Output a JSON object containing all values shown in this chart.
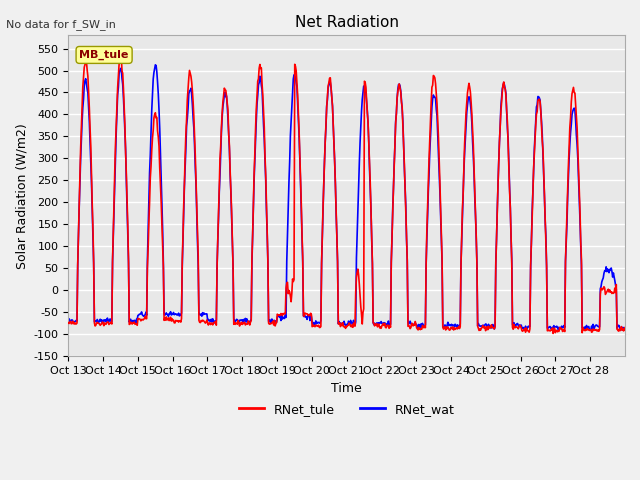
{
  "title": "Net Radiation",
  "subtitle": "No data for f_SW_in",
  "xlabel": "Time",
  "ylabel": "Solar Radiation (W/m2)",
  "ylim": [
    -150,
    580
  ],
  "yticks": [
    -150,
    -100,
    -50,
    0,
    50,
    100,
    150,
    200,
    250,
    300,
    350,
    400,
    450,
    500,
    550
  ],
  "xtick_labels": [
    "Oct 13",
    "Oct 14",
    "Oct 15",
    "Oct 16",
    "Oct 17",
    "Oct 18",
    "Oct 19",
    "Oct 20",
    "Oct 21",
    "Oct 22",
    "Oct 23",
    "Oct 24",
    "Oct 25",
    "Oct 26",
    "Oct 27",
    "Oct 28"
  ],
  "color_tule": "#FF0000",
  "color_wat": "#0000FF",
  "legend_label_tule": "RNet_tule",
  "legend_label_wat": "RNet_wat",
  "legend_box_label": "MB_tule",
  "legend_box_color": "#FFFF99",
  "legend_box_edge": "#999900",
  "bg_color": "#E8E8E8",
  "grid_color": "#FFFFFF",
  "line_width": 1.2,
  "days": 16,
  "points_per_day": 48,
  "day_peaks_tule": [
    525,
    530,
    400,
    495,
    460,
    515,
    510,
    480,
    475,
    470,
    490,
    465,
    470,
    435,
    460,
    0
  ],
  "day_peaks_wat": [
    480,
    505,
    510,
    460,
    450,
    485,
    490,
    475,
    470,
    470,
    445,
    440,
    475,
    440,
    415,
    50
  ],
  "night_vals_tule": [
    -75,
    -75,
    -65,
    -70,
    -75,
    -75,
    -55,
    -80,
    -80,
    -80,
    -85,
    -85,
    -85,
    -90,
    -90,
    -90
  ],
  "night_vals_wat": [
    -70,
    -70,
    -55,
    -55,
    -70,
    -70,
    -60,
    -75,
    -75,
    -75,
    -80,
    -80,
    -80,
    -85,
    -85,
    -85
  ]
}
